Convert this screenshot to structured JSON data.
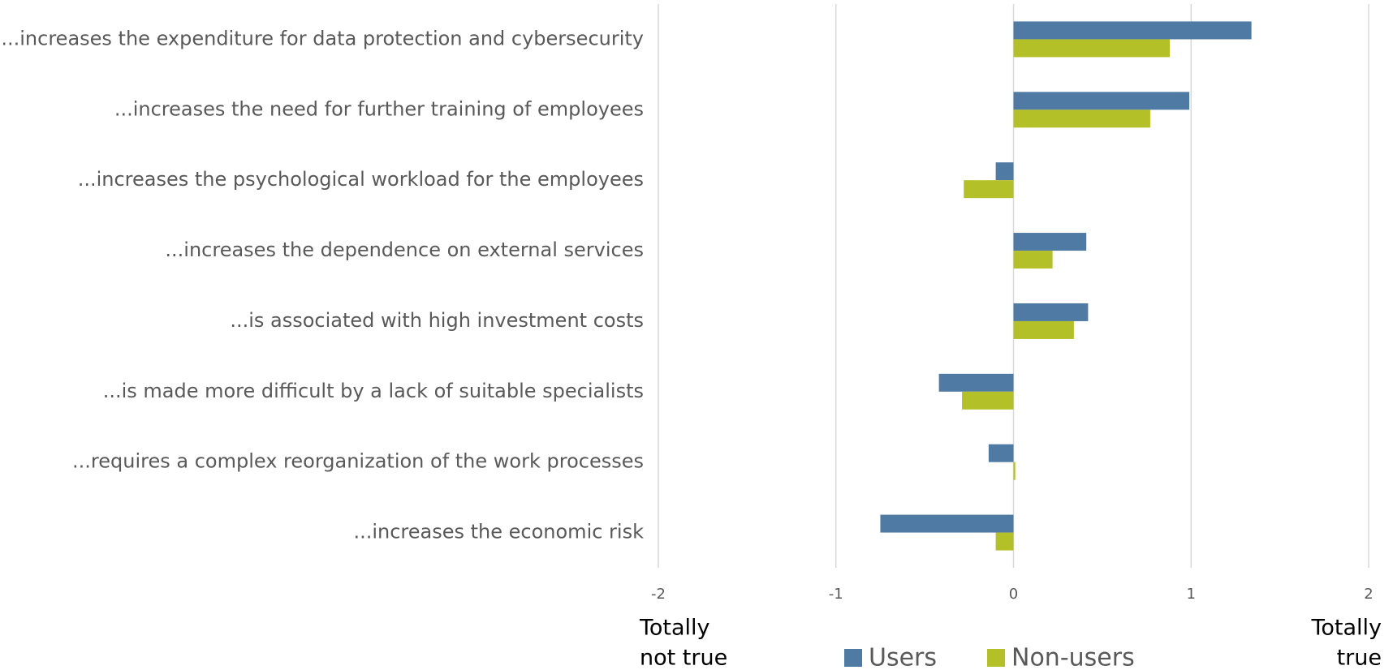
{
  "chart_data": {
    "type": "hbar",
    "categories": [
      "...increases the expenditure for data protection and cybersecurity",
      "...increases the need for further training of employees",
      "...increases the psychological workload for the employees",
      "...increases the dependence on external services",
      "...is associated with high investment costs",
      "...is made more difficult by a lack of suitable specialists",
      "...requires a complex reorganization of the work processes",
      "...increases the economic risk"
    ],
    "series": [
      {
        "name": "Users",
        "color": "#4f7aa3",
        "values": [
          1.34,
          0.99,
          -0.1,
          0.41,
          0.42,
          -0.42,
          -0.14,
          -0.75
        ]
      },
      {
        "name": "Non-users",
        "color": "#b4c027",
        "values": [
          0.88,
          0.77,
          -0.28,
          0.22,
          0.34,
          -0.29,
          0.01,
          -0.1
        ]
      }
    ],
    "xlim": [
      -2,
      2
    ],
    "xticks": [
      -2,
      -1,
      0,
      1,
      2
    ],
    "grid": true,
    "left_annotation": [
      "Totally",
      "not true"
    ],
    "right_annotation": [
      "Totally",
      "true"
    ],
    "legend": "bottom"
  }
}
